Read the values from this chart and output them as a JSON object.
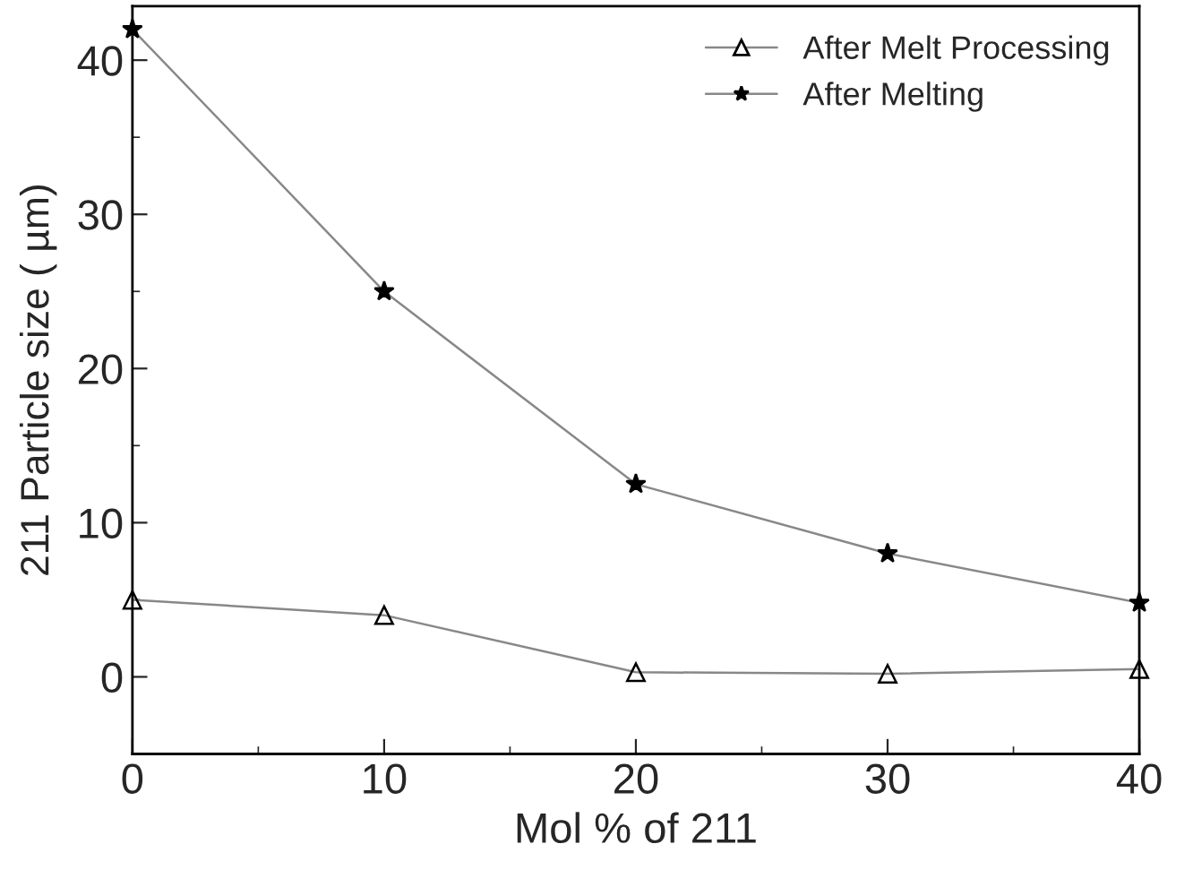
{
  "chart_data": {
    "type": "line",
    "xlabel": "Mol % of 211",
    "ylabel": "211 Particle size ( µm)",
    "x": [
      0,
      10,
      20,
      30,
      40
    ],
    "series": [
      {
        "name": "After Melt Processing",
        "color": "#000000",
        "marker": "triangle",
        "values": [
          5,
          4,
          0.3,
          0.2,
          0.5
        ]
      },
      {
        "name": "After Melting",
        "color": "#000000",
        "marker": "star",
        "values": [
          42,
          25,
          12.5,
          8,
          4.8
        ]
      }
    ],
    "xlim": [
      0,
      40
    ],
    "ylim": [
      -5,
      43.5
    ],
    "xticks": [
      0,
      10,
      20,
      30,
      40
    ],
    "yticks": [
      0,
      10,
      20,
      30,
      40
    ],
    "grid": false,
    "legend": "top right",
    "line_style": "solid"
  }
}
